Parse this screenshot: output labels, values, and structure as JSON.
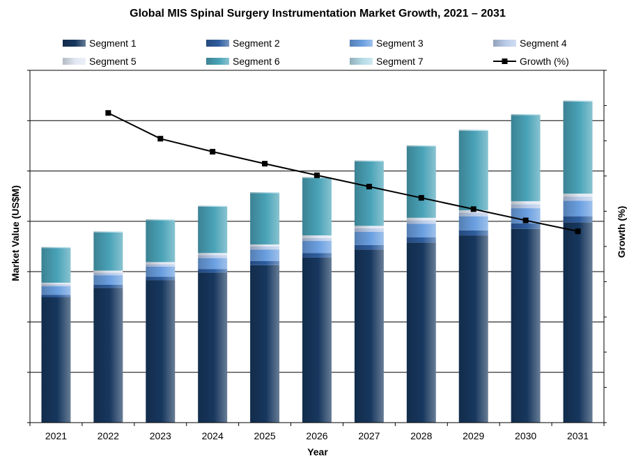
{
  "chart_data": {
    "type": "bar",
    "stacked": true,
    "title": "Global MIS Spinal Surgery Instrumentation Market Growth, 2021 – 2031",
    "xlabel": "Year",
    "ylabel": "Market Value (US$M)",
    "y2label": "Growth (%)",
    "ylim": [
      0,
      7
    ],
    "y2lim": [
      0,
      10
    ],
    "grid": true,
    "legend_position": "top",
    "categories": [
      "2021",
      "2022",
      "2023",
      "2024",
      "2025",
      "2026",
      "2027",
      "2028",
      "2029",
      "2030",
      "2031"
    ],
    "series": [
      {
        "name": "Segment 1",
        "color": "#17375e",
        "values": [
          2.49,
          2.68,
          2.83,
          2.98,
          3.13,
          3.28,
          3.44,
          3.58,
          3.72,
          3.85,
          3.98
        ]
      },
      {
        "name": "Segment 2",
        "color": "#2e5d9e",
        "values": [
          0.05,
          0.06,
          0.07,
          0.07,
          0.08,
          0.09,
          0.09,
          0.1,
          0.1,
          0.11,
          0.12
        ]
      },
      {
        "name": "Segment 3",
        "color": "#6a9fe0",
        "values": [
          0.17,
          0.19,
          0.2,
          0.22,
          0.23,
          0.24,
          0.26,
          0.27,
          0.28,
          0.3,
          0.31
        ]
      },
      {
        "name": "Segment 4",
        "color": "#b9cbe9",
        "values": [
          0.04,
          0.05,
          0.05,
          0.06,
          0.06,
          0.06,
          0.07,
          0.07,
          0.07,
          0.08,
          0.08
        ]
      },
      {
        "name": "Segment 5",
        "color": "#e1e8f3",
        "values": [
          0.03,
          0.04,
          0.04,
          0.04,
          0.04,
          0.05,
          0.05,
          0.05,
          0.05,
          0.06,
          0.06
        ]
      },
      {
        "name": "Segment 6",
        "color": "#4aa3b8",
        "values": [
          0.69,
          0.76,
          0.83,
          0.92,
          1.02,
          1.14,
          1.28,
          1.42,
          1.58,
          1.71,
          1.83
        ]
      },
      {
        "name": "Segment 7",
        "color": "#b4dbe6",
        "values": [
          0.02,
          0.02,
          0.02,
          0.02,
          0.02,
          0.02,
          0.02,
          0.02,
          0.02,
          0.02,
          0.02
        ]
      }
    ],
    "line_series": {
      "name": "Growth (%)",
      "color": "#000000",
      "axis": "right",
      "values": [
        null,
        8.79,
        8.06,
        7.69,
        7.35,
        7.02,
        6.7,
        6.38,
        6.06,
        5.74,
        5.43
      ]
    }
  }
}
